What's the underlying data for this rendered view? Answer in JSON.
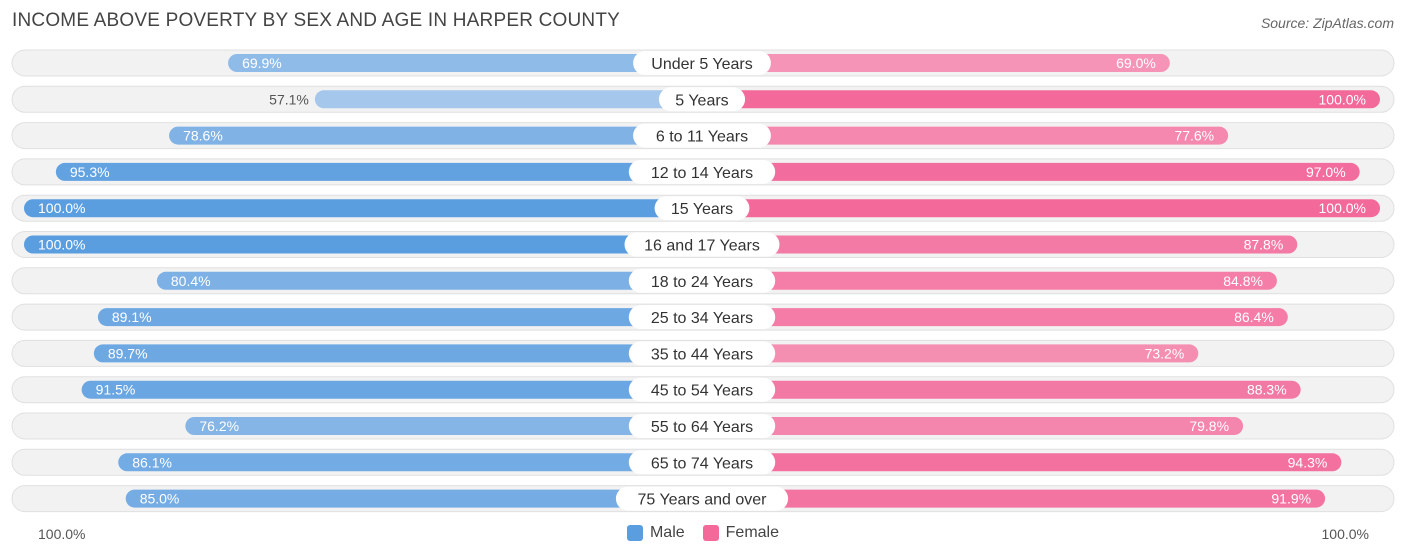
{
  "title": "INCOME ABOVE POVERTY BY SEX AND AGE IN HARPER COUNTY",
  "source": "Source: ZipAtlas.com",
  "colors": {
    "male_dark": "#5b9ee0",
    "male_light": "#a9c9ec",
    "female_dark": "#f2699a",
    "female_light": "#f7a8c3",
    "track": "#f2f2f2",
    "track_border": "#e0e0e0"
  },
  "axis": {
    "left_label": "100.0%",
    "right_label": "100.0%"
  },
  "legend": {
    "male_label": "Male",
    "female_label": "Female"
  },
  "chart_data": {
    "type": "bar",
    "orientation": "horizontal-diverging",
    "title": "INCOME ABOVE POVERTY BY SEX AND AGE IN HARPER COUNTY",
    "categories": [
      "Under 5 Years",
      "5 Years",
      "6 to 11 Years",
      "12 to 14 Years",
      "15 Years",
      "16 and 17 Years",
      "18 to 24 Years",
      "25 to 34 Years",
      "35 to 44 Years",
      "45 to 54 Years",
      "55 to 64 Years",
      "65 to 74 Years",
      "75 Years and over"
    ],
    "series": [
      {
        "name": "Male",
        "values": [
          69.9,
          57.1,
          78.6,
          95.3,
          100.0,
          100.0,
          80.4,
          89.1,
          89.7,
          91.5,
          76.2,
          86.1,
          85.0
        ],
        "labels": [
          "69.9%",
          "57.1%",
          "78.6%",
          "95.3%",
          "100.0%",
          "100.0%",
          "80.4%",
          "89.1%",
          "89.7%",
          "91.5%",
          "76.2%",
          "86.1%",
          "85.0%"
        ]
      },
      {
        "name": "Female",
        "values": [
          69.0,
          100.0,
          77.6,
          97.0,
          100.0,
          87.8,
          84.8,
          86.4,
          73.2,
          88.3,
          79.8,
          94.3,
          91.9
        ],
        "labels": [
          "69.0%",
          "100.0%",
          "77.6%",
          "97.0%",
          "100.0%",
          "87.8%",
          "84.8%",
          "86.4%",
          "73.2%",
          "88.3%",
          "79.8%",
          "94.3%",
          "91.9%"
        ]
      }
    ],
    "xlim": [
      0,
      100
    ],
    "legend_position": "bottom-center"
  }
}
